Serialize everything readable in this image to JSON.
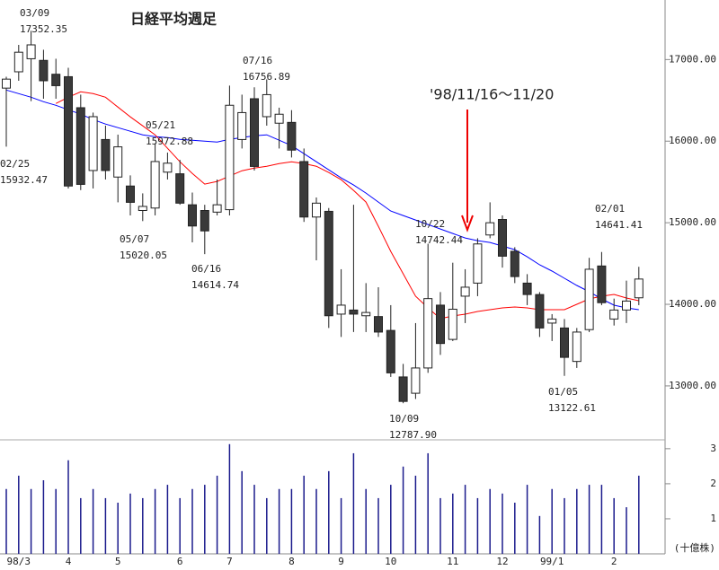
{
  "chart_data": {
    "type": "candlestick",
    "title": "日経平均週足",
    "annotation": "'98/11/16～11/20",
    "categories": [
      null,
      "98/3",
      null,
      null,
      null,
      "4",
      null,
      null,
      null,
      "5",
      null,
      null,
      null,
      null,
      "6",
      null,
      null,
      null,
      "7",
      null,
      null,
      null,
      null,
      "8",
      null,
      null,
      null,
      "9",
      null,
      null,
      null,
      "10",
      null,
      null,
      null,
      null,
      "11",
      null,
      null,
      null,
      "12",
      null,
      null,
      null,
      "99/1",
      null,
      null,
      null,
      null,
      "2",
      null,
      null
    ],
    "open": [
      16650,
      16850,
      17010,
      16990,
      16820,
      16790,
      16410,
      15640,
      16020,
      15560,
      15450,
      15150,
      15180,
      15620,
      15600,
      15220,
      15150,
      15130,
      15160,
      16020,
      16520,
      16300,
      16220,
      16230,
      15750,
      15070,
      15140,
      13880,
      13930,
      13860,
      13850,
      13680,
      13110,
      12910,
      13220,
      13990,
      13570,
      14100,
      14260,
      14850,
      15040,
      14650,
      14260,
      14120,
      13770,
      13710,
      13300,
      13690,
      14470,
      13820,
      13930,
      14080
    ],
    "close": [
      16760,
      17090,
      17180,
      16740,
      16680,
      15450,
      15470,
      16300,
      15640,
      15930,
      15250,
      15200,
      15750,
      15730,
      15240,
      14960,
      14900,
      15220,
      16440,
      16350,
      15690,
      16570,
      16330,
      15890,
      15070,
      15240,
      13860,
      13990,
      13880,
      13900,
      13660,
      13160,
      12810,
      13220,
      14070,
      13520,
      13940,
      14210,
      14740,
      15000,
      14590,
      14340,
      14120,
      13710,
      13820,
      13350,
      13660,
      14430,
      14020,
      13930,
      14040,
      14310
    ],
    "high": [
      16790,
      17180,
      17352.35,
      17120,
      17010,
      16900,
      16570,
      16350,
      16190,
      16080,
      15580,
      15360,
      15972.88,
      15860,
      15770,
      15370,
      15220,
      15530,
      16680,
      16570,
      16660,
      16756.89,
      16410,
      16380,
      15910,
      15310,
      15180,
      14430,
      15220,
      14260,
      14210,
      13990,
      13270,
      13770,
      14742.44,
      14150,
      14510,
      14430,
      14810,
      15250,
      15090,
      14700,
      14370,
      14150,
      13880,
      13820,
      13710,
      14570,
      14641.41,
      14070,
      14290,
      14460
    ],
    "low": [
      15932.47,
      16740,
      16490,
      16520,
      16520,
      15420,
      15400,
      15420,
      15530,
      15250,
      15090,
      15020.05,
      15090,
      15530,
      15220,
      14760,
      14614.74,
      15090,
      15090,
      15910,
      15640,
      16190,
      15910,
      15800,
      15010,
      14540,
      13710,
      13600,
      13660,
      13660,
      13600,
      13110,
      12787.9,
      12840,
      13160,
      13380,
      13550,
      13770,
      14100,
      14810,
      14450,
      14260,
      13990,
      13600,
      13550,
      13122.61,
      13220,
      13660,
      13990,
      13740,
      13770,
      13990
    ],
    "series": [
      {
        "color": "#0000ff",
        "values": [
          16626,
          16582,
          16538,
          16484,
          16440,
          16385,
          16330,
          16264,
          16209,
          16165,
          16121,
          16077,
          16055,
          16044,
          16022,
          16011,
          16000,
          15989,
          16022,
          16044,
          16066,
          16077,
          16011,
          15945,
          15846,
          15747,
          15648,
          15549,
          15462,
          15363,
          15253,
          15143,
          15088,
          15033,
          14978,
          14923,
          14868,
          14813,
          14780,
          14758,
          14714,
          14670,
          14582,
          14484,
          14407,
          14319,
          14231,
          14154,
          14066,
          13989,
          13956,
          13934
        ]
      },
      {
        "color": "#ff0000",
        "values": [
          null,
          null,
          null,
          null,
          16462,
          16538,
          16604,
          16582,
          16538,
          16418,
          16297,
          16187,
          16077,
          15912,
          15747,
          15604,
          15473,
          15506,
          15571,
          15637,
          15670,
          15692,
          15725,
          15747,
          15725,
          15692,
          15615,
          15527,
          15396,
          15253,
          14956,
          14648,
          14374,
          14099,
          13956,
          13824,
          13857,
          13879,
          13912,
          13934,
          13956,
          13967,
          13956,
          13934,
          13934,
          13934,
          14000,
          14066,
          14099,
          14121,
          14077,
          14044
        ]
      }
    ],
    "volume": [
      1.85,
      2.23,
      1.85,
      2.1,
      1.85,
      2.67,
      1.59,
      1.85,
      1.59,
      1.46,
      1.72,
      1.59,
      1.85,
      1.97,
      1.59,
      1.85,
      1.97,
      2.23,
      3.13,
      2.36,
      1.97,
      1.59,
      1.85,
      1.85,
      2.23,
      1.85,
      2.36,
      1.59,
      2.87,
      1.85,
      1.59,
      1.97,
      2.49,
      2.23,
      2.87,
      1.59,
      1.72,
      1.97,
      1.59,
      1.85,
      1.72,
      1.46,
      1.97,
      1.08,
      1.85,
      1.59,
      1.85,
      1.97,
      1.97,
      1.59,
      1.33,
      2.23
    ],
    "volume_color": "#1a1a8c",
    "volume_unit": "(十億株)",
    "ylim": [
      12350,
      17730
    ],
    "yticks": [
      {
        "value": 13000,
        "label": "13000.00"
      },
      {
        "value": 14000,
        "label": "14000.00"
      },
      {
        "value": 15000,
        "label": "15000.00"
      },
      {
        "value": 16000,
        "label": "16000.00"
      },
      {
        "value": 17000,
        "label": "17000.00"
      }
    ],
    "y2lim": [
      0,
      3.15
    ],
    "y2ticks": [
      1,
      2,
      3
    ],
    "annotations": [
      {
        "date": "03/09",
        "label": "17352.35"
      },
      {
        "date": "02/25",
        "label": "15932.47"
      },
      {
        "date": "05/21",
        "label": "15972.88"
      },
      {
        "date": "05/07",
        "label": "15020.05"
      },
      {
        "date": "06/16",
        "label": "14614.74"
      },
      {
        "date": "07/16",
        "label": "16756.89"
      },
      {
        "date": "10/22",
        "label": "14742.44"
      },
      {
        "date": "10/09",
        "label": "12787.90"
      },
      {
        "date": "01/05",
        "label": "13122.61"
      },
      {
        "date": "02/01",
        "label": "14641.41"
      }
    ]
  }
}
